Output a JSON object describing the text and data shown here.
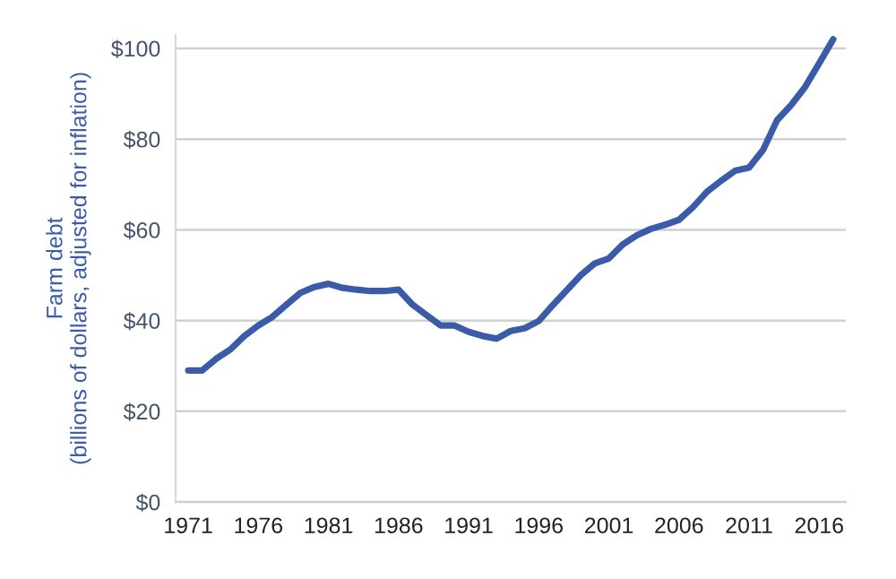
{
  "chart_data": {
    "type": "line",
    "ylabel": "Farm debt\n(billions of dollars, adjusted for inflation)",
    "categories": [
      "1971",
      null,
      null,
      null,
      null,
      "1976",
      null,
      null,
      null,
      null,
      "1981",
      null,
      null,
      null,
      null,
      "1986",
      null,
      null,
      null,
      null,
      "1991",
      null,
      null,
      null,
      null,
      "1996",
      null,
      null,
      null,
      null,
      "2001",
      null,
      null,
      null,
      null,
      "2006",
      null,
      null,
      null,
      null,
      "2011",
      null,
      null,
      null,
      null,
      "2016",
      null
    ],
    "series": [
      {
        "color": "#3a5ca8",
        "values": [
          29.0,
          29.0,
          31.6,
          33.6,
          36.6,
          38.9,
          40.8,
          43.5,
          46.1,
          47.4,
          48.1,
          47.2,
          46.8,
          46.5,
          46.5,
          46.8,
          43.5,
          41.2,
          38.9,
          38.9,
          37.5,
          36.6,
          36.0,
          37.7,
          38.3,
          39.9,
          43.4,
          46.7,
          50.0,
          52.6,
          53.7,
          56.8,
          58.8,
          60.2,
          61.1,
          62.2,
          65.0,
          68.4,
          70.8,
          73.0,
          73.7,
          77.6,
          84.2,
          87.5,
          91.5,
          96.7,
          102.0
        ]
      }
    ],
    "ylim": [
      0,
      103
    ],
    "yticks": [
      {
        "value": 0,
        "label": "$0"
      },
      {
        "value": 20,
        "label": "$20"
      },
      {
        "value": 40,
        "label": "$40"
      },
      {
        "value": 60,
        "label": "$60"
      },
      {
        "value": 80,
        "label": "$80"
      },
      {
        "value": 100,
        "label": "$100"
      }
    ],
    "grid": "y",
    "legend": false,
    "marker": "none",
    "line_style": "solid"
  }
}
